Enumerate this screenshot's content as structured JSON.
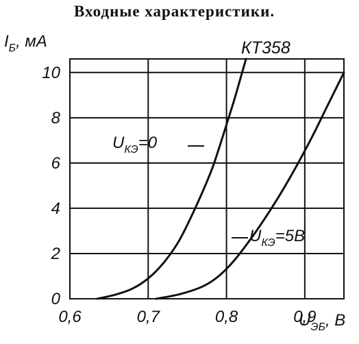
{
  "chart_data": {
    "type": "line",
    "title": "Входные характеристики.",
    "ylabel": {
      "main": "I",
      "sub": "Б",
      "unit": ", мА"
    },
    "xlabel": {
      "main": "U",
      "sub": "ЭБ",
      "unit": ", B"
    },
    "model": "КТ358",
    "x_ticks": [
      {
        "value": 0.6,
        "label": "0,6"
      },
      {
        "value": 0.7,
        "label": "0,7"
      },
      {
        "value": 0.8,
        "label": "0,8"
      },
      {
        "value": 0.9,
        "label": "0,9"
      }
    ],
    "y_ticks": [
      {
        "value": 0,
        "label": "0"
      },
      {
        "value": 2,
        "label": "2"
      },
      {
        "value": 4,
        "label": "4"
      },
      {
        "value": 6,
        "label": "6"
      },
      {
        "value": 8,
        "label": "8"
      },
      {
        "value": 10,
        "label": "10"
      }
    ],
    "xlim": [
      0.6,
      0.95
    ],
    "ylim": [
      0,
      10.6
    ],
    "grid": true,
    "series": [
      {
        "label_main": "U",
        "label_sub": "КЭ",
        "label_value": "=0",
        "x": [
          0.635,
          0.66,
          0.68,
          0.7,
          0.72,
          0.74,
          0.76,
          0.78,
          0.79,
          0.8,
          0.81,
          0.82,
          0.825
        ],
        "y": [
          0,
          0.2,
          0.45,
          0.9,
          1.6,
          2.6,
          4.0,
          5.6,
          6.6,
          7.7,
          8.8,
          10.0,
          10.6
        ]
      },
      {
        "label_main": "U",
        "label_sub": "КЭ",
        "label_value": "=5В",
        "x": [
          0.71,
          0.74,
          0.77,
          0.79,
          0.81,
          0.83,
          0.85,
          0.87,
          0.89,
          0.91,
          0.93,
          0.95
        ],
        "y": [
          0,
          0.2,
          0.55,
          1.0,
          1.7,
          2.6,
          3.6,
          4.7,
          5.9,
          7.2,
          8.6,
          10.0
        ]
      }
    ]
  }
}
